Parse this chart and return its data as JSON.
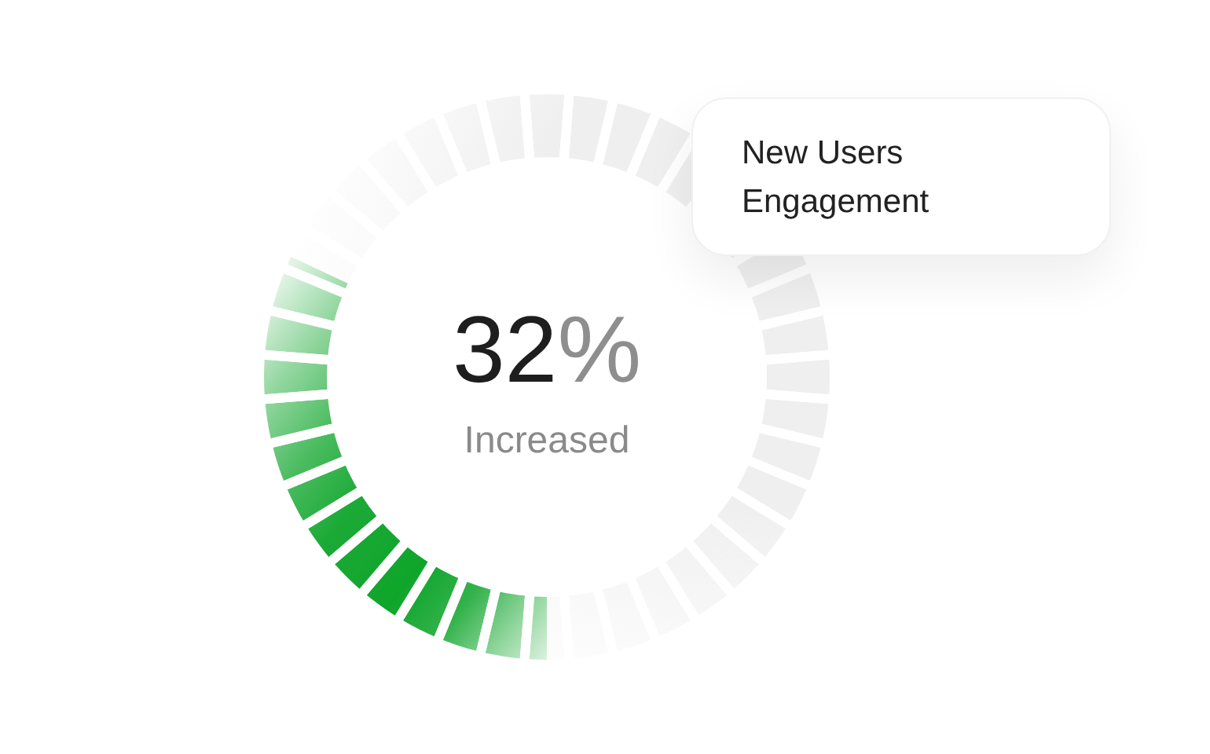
{
  "chart_data": {
    "type": "donut",
    "title": "New Users Engagement",
    "categories": [
      "Increased",
      null
    ],
    "values": [
      32,
      68
    ],
    "colors": [
      "#0fa52b",
      "#efefef"
    ],
    "value_labels": [
      "32%",
      null
    ]
  }
}
